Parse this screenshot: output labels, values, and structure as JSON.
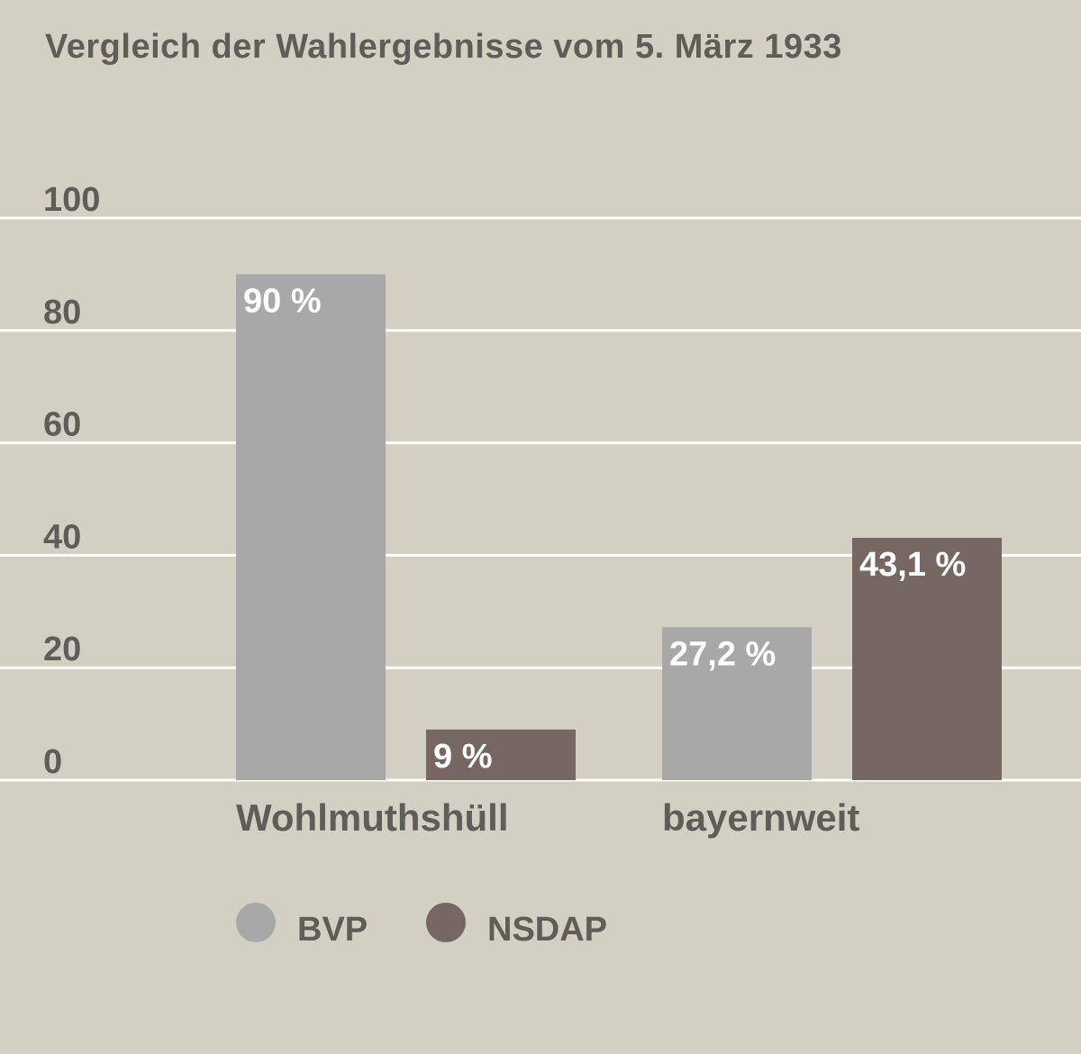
{
  "colors": {
    "background": "#d4cfc3",
    "gridline": "#ffffff",
    "text": "#5e5d58",
    "BVP": "#a8a8a8",
    "NSDAP": "#776762",
    "value_label": "#ffffff"
  },
  "chart_data": {
    "type": "bar",
    "title": "Vergleich der Wahlergebnisse vom 5. März 1933",
    "xlabel": "",
    "ylabel": "",
    "categories": [
      "Wohlmuthshüll",
      "bayernweit"
    ],
    "series": [
      {
        "name": "BVP",
        "values": [
          90,
          27.2
        ],
        "labels": [
          "90 %",
          "27,2 %"
        ]
      },
      {
        "name": "NSDAP",
        "values": [
          9,
          43.1
        ],
        "labels": [
          "9 %",
          "43,1 %"
        ]
      }
    ],
    "ylim": [
      0,
      100
    ],
    "yticks": [
      0,
      20,
      40,
      60,
      80,
      100
    ],
    "ytick_labels": [
      "0",
      "20",
      "40",
      "60",
      "80",
      "100"
    ],
    "grid": true,
    "legend": {
      "placement": "bottom-left",
      "entries": [
        "BVP",
        "NSDAP"
      ]
    }
  }
}
